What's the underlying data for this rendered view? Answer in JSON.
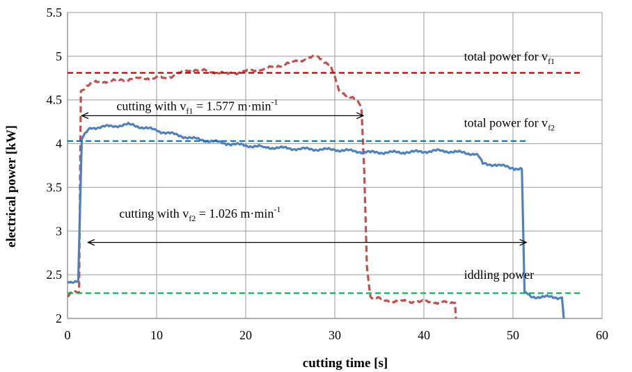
{
  "chart_data": {
    "type": "line",
    "title": "",
    "xlabel": "cutting time [s]",
    "ylabel": "electrical power [kW]",
    "xlim": [
      0,
      60
    ],
    "ylim": [
      2,
      5.5
    ],
    "x_ticks": [
      "0",
      "10",
      "20",
      "30",
      "40",
      "50",
      "60"
    ],
    "y_ticks": [
      "2",
      "2.5",
      "3",
      "3.5",
      "4",
      "4.5",
      "5",
      "5.5"
    ],
    "grid": true,
    "series": [
      {
        "color": "#c0504d",
        "style": "dashed",
        "points": [
          [
            0,
            2.25
          ],
          [
            0.6,
            2.3
          ],
          [
            1.3,
            2.3
          ],
          [
            1.5,
            4.6
          ],
          [
            2,
            4.65
          ],
          [
            3,
            4.7
          ],
          [
            5,
            4.72
          ],
          [
            8,
            4.75
          ],
          [
            11,
            4.75
          ],
          [
            14,
            4.85
          ],
          [
            18,
            4.8
          ],
          [
            22,
            4.85
          ],
          [
            26,
            4.95
          ],
          [
            28,
            5.0
          ],
          [
            29.5,
            4.9
          ],
          [
            30.5,
            4.6
          ],
          [
            31.5,
            4.55
          ],
          [
            32.5,
            4.5
          ],
          [
            33,
            4.4
          ],
          [
            33.3,
            3.7
          ],
          [
            33.6,
            2.6
          ],
          [
            34,
            2.25
          ],
          [
            36,
            2.2
          ],
          [
            40,
            2.19
          ],
          [
            43.5,
            2.18
          ],
          [
            43.6,
            2.0
          ]
        ]
      },
      {
        "color": "#4f81bd",
        "style": "solid",
        "points": [
          [
            0,
            2.42
          ],
          [
            1.2,
            2.43
          ],
          [
            1.6,
            4.05
          ],
          [
            2.5,
            4.18
          ],
          [
            5,
            4.2
          ],
          [
            7,
            4.22
          ],
          [
            10,
            4.15
          ],
          [
            14,
            4.06
          ],
          [
            18,
            4.0
          ],
          [
            22,
            3.96
          ],
          [
            26,
            3.94
          ],
          [
            30,
            3.93
          ],
          [
            34,
            3.9
          ],
          [
            38,
            3.9
          ],
          [
            42,
            3.92
          ],
          [
            46,
            3.88
          ],
          [
            46.6,
            3.77
          ],
          [
            48,
            3.76
          ],
          [
            50,
            3.72
          ],
          [
            51,
            3.71
          ],
          [
            51.3,
            2.3
          ],
          [
            52,
            2.25
          ],
          [
            55.5,
            2.24
          ],
          [
            55.7,
            2.0
          ]
        ]
      },
      {
        "name": "total power for vf1",
        "color": "#c00000",
        "style": "dashed",
        "points": [
          [
            0,
            4.81
          ],
          [
            57.5,
            4.81
          ]
        ]
      },
      {
        "name": "total power for vf2",
        "color": "#0070c0",
        "style": "dashed",
        "points": [
          [
            0,
            4.03
          ],
          [
            51.5,
            4.03
          ]
        ]
      },
      {
        "name": "iddling power",
        "color": "#00b050",
        "style": "dashed",
        "points": [
          [
            0,
            2.29
          ],
          [
            57.5,
            2.29
          ]
        ]
      }
    ],
    "annotations": [
      {
        "label_main": "cutting with v",
        "sub": "f1",
        "mid": " = 1.577 m·min",
        "sup": "-1",
        "x": 5.5,
        "y": 4.43,
        "arrow_x": [
          1.6,
          33.2
        ],
        "arrow_y": 4.32
      },
      {
        "label_main": "cutting with v",
        "sub": "f2",
        "mid": " = 1.026 m·min",
        "sup": "-1",
        "x": 5.8,
        "y": 3.2,
        "arrow_x": [
          2.3,
          51.5
        ],
        "arrow_y": 2.87
      }
    ],
    "line_labels": [
      {
        "label_main": "total power for v",
        "sub": "f1",
        "x": 44.5,
        "y": 5.0
      },
      {
        "label_main": "total power for v",
        "sub": "f2",
        "x": 44.5,
        "y": 4.24
      },
      {
        "label_main": "iddling power",
        "sub": "",
        "x": 44.5,
        "y": 2.5
      }
    ]
  }
}
